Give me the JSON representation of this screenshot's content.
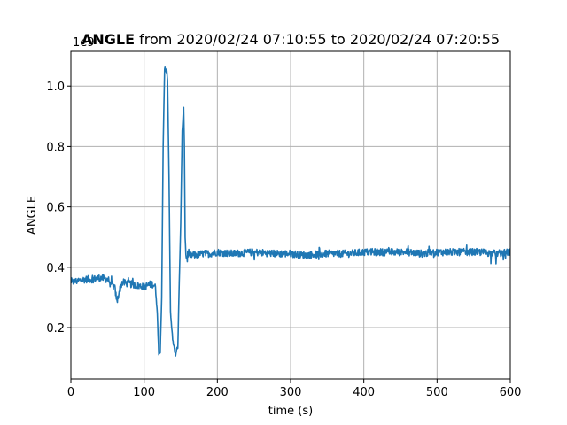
{
  "chart_data": {
    "type": "line",
    "title_bold": "ANGLE",
    "title_rest": " from 2020/02/24 07:10:55 to 2020/02/24 07:20:55",
    "xlabel": "time (s)",
    "ylabel": "ANGLE",
    "y_offset_text": "1e9",
    "xlim": [
      0,
      600
    ],
    "ylim": [
      0.03,
      1.115
    ],
    "x_ticks": [
      0,
      100,
      200,
      300,
      400,
      500,
      600
    ],
    "x_tick_labels": [
      "0",
      "100",
      "200",
      "300",
      "400",
      "500",
      "600"
    ],
    "y_ticks": [
      0.2,
      0.4,
      0.6,
      0.8,
      1.0
    ],
    "y_tick_labels": [
      "0.2",
      "0.4",
      "0.6",
      "0.8",
      "1.0"
    ],
    "grid": true,
    "color": "#1f77b4",
    "series": [
      {
        "x": [
          0,
          10,
          20,
          30,
          40,
          50,
          55,
          60,
          63,
          66,
          70,
          80,
          90,
          100,
          110,
          115,
          118,
          120,
          122,
          124,
          126,
          128,
          130,
          132,
          134,
          136,
          138,
          140,
          142,
          144,
          146,
          148,
          150,
          152,
          154,
          155,
          156,
          157,
          158,
          160,
          165,
          170,
          180,
          190,
          200,
          220,
          250,
          280,
          300,
          320,
          350,
          380,
          400,
          430,
          460,
          480,
          500,
          530,
          560,
          580,
          600
        ],
        "y": [
          0.35,
          0.355,
          0.36,
          0.36,
          0.365,
          0.36,
          0.35,
          0.33,
          0.285,
          0.32,
          0.35,
          0.345,
          0.34,
          0.335,
          0.345,
          0.34,
          0.25,
          0.11,
          0.12,
          0.3,
          0.8,
          1.06,
          1.06,
          1.02,
          0.7,
          0.25,
          0.19,
          0.15,
          0.11,
          0.12,
          0.13,
          0.35,
          0.55,
          0.85,
          0.93,
          0.8,
          0.5,
          0.44,
          0.43,
          0.43,
          0.44,
          0.44,
          0.445,
          0.445,
          0.45,
          0.445,
          0.45,
          0.445,
          0.445,
          0.44,
          0.445,
          0.445,
          0.45,
          0.45,
          0.45,
          0.445,
          0.45,
          0.45,
          0.45,
          0.445,
          0.45
        ]
      }
    ]
  }
}
